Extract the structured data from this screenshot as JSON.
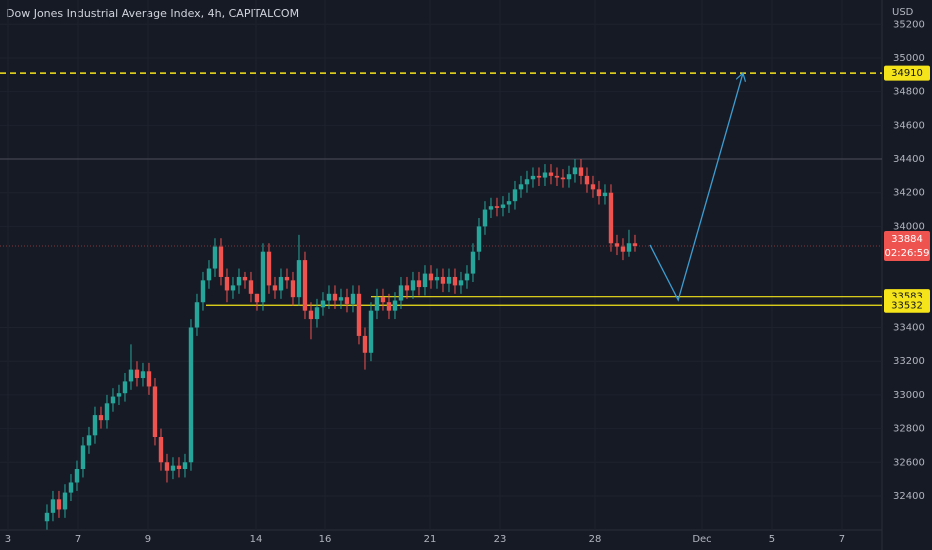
{
  "chart_data": {
    "type": "candlestick",
    "title": "Dow Jones Industrial Average Index, 4h, CAPITALCOM",
    "currency": "USD",
    "countdown": "02:26:59",
    "up_color": "#26a69a",
    "down_color": "#ef5350",
    "grid": true,
    "xlim": [
      -7.83,
      139.17
    ],
    "ylim": [
      32198,
      35344
    ],
    "xticks": [
      {
        "value": -6.5,
        "label": "3"
      },
      {
        "value": 5.17,
        "label": "7"
      },
      {
        "value": 16.83,
        "label": "9"
      },
      {
        "value": 34.83,
        "label": "14"
      },
      {
        "value": 46.33,
        "label": "16"
      },
      {
        "value": 63.83,
        "label": "21"
      },
      {
        "value": 75.5,
        "label": "23"
      },
      {
        "value": 91.33,
        "label": "28"
      },
      {
        "value": 109.17,
        "label": "Dec"
      },
      {
        "value": 120.83,
        "label": "5"
      },
      {
        "value": 132.5,
        "label": "7"
      }
    ],
    "yticks": [
      32400,
      32600,
      32800,
      33000,
      33200,
      33400,
      34000,
      34200,
      34400,
      34600,
      34800,
      35000,
      35200
    ],
    "candles": {
      "open": [
        32250,
        32300,
        32380,
        32320,
        32420,
        32480,
        32560,
        32700,
        32760,
        32880,
        32850,
        32950,
        32990,
        33010,
        33080,
        33150,
        33100,
        33140,
        33050,
        32750,
        32600,
        32550,
        32580,
        32560,
        32600,
        33400,
        33550,
        33680,
        33750,
        33880,
        33700,
        33620,
        33650,
        33700,
        33680,
        33600,
        33550,
        33850,
        33650,
        33620,
        33700,
        33680,
        33580,
        33800,
        33500,
        33450,
        33520,
        33560,
        33600,
        33560,
        33580,
        33540,
        33600,
        33350,
        33250,
        33500,
        33580,
        33550,
        33500,
        33560,
        33650,
        33620,
        33680,
        33640,
        33720,
        33680,
        33700,
        33660,
        33700,
        33650,
        33680,
        33720,
        33850,
        34000,
        34100,
        34120,
        34110,
        34130,
        34150,
        34220,
        34250,
        34280,
        34300,
        34290,
        34320,
        34300,
        34290,
        34280,
        34310,
        34350,
        34300,
        34250,
        34220,
        34180,
        34200,
        33900,
        33880,
        33850,
        33900
      ],
      "high": [
        32350,
        32430,
        32430,
        32470,
        32530,
        32610,
        32750,
        32810,
        32930,
        32930,
        33000,
        33040,
        33060,
        33130,
        33300,
        33200,
        33190,
        33190,
        33100,
        32800,
        32650,
        32630,
        32630,
        32650,
        33450,
        33600,
        33730,
        33800,
        33930,
        33930,
        33750,
        33700,
        33750,
        33730,
        33730,
        33600,
        33900,
        33900,
        33700,
        33750,
        33750,
        33730,
        33950,
        33850,
        33550,
        33570,
        33610,
        33650,
        33650,
        33630,
        33630,
        33650,
        33650,
        33400,
        33550,
        33630,
        33630,
        33600,
        33610,
        33700,
        33700,
        33730,
        33730,
        33770,
        33770,
        33750,
        33750,
        33750,
        33750,
        33730,
        33770,
        33900,
        34050,
        34150,
        34170,
        34170,
        34180,
        34200,
        34270,
        34300,
        34330,
        34350,
        34350,
        34370,
        34370,
        34350,
        34340,
        34360,
        34400,
        34400,
        34350,
        34300,
        34270,
        34250,
        34250,
        33950,
        33930,
        33980,
        33950
      ],
      "low": [
        32200,
        32250,
        32270,
        32270,
        32370,
        32430,
        32510,
        32650,
        32710,
        32800,
        32800,
        32900,
        32940,
        32960,
        33030,
        33050,
        33050,
        33000,
        32700,
        32550,
        32480,
        32500,
        32510,
        32510,
        32550,
        33350,
        33500,
        33630,
        33700,
        33650,
        33550,
        33570,
        33600,
        33630,
        33550,
        33500,
        33500,
        33600,
        33570,
        33570,
        33630,
        33530,
        33530,
        33450,
        33330,
        33400,
        33470,
        33510,
        33510,
        33510,
        33490,
        33490,
        33300,
        33150,
        33200,
        33450,
        33500,
        33450,
        33450,
        33510,
        33570,
        33570,
        33590,
        33590,
        33630,
        33630,
        33610,
        33610,
        33600,
        33600,
        33630,
        33670,
        33800,
        33950,
        34050,
        34060,
        34060,
        34080,
        34100,
        34170,
        34200,
        34230,
        34240,
        34240,
        34250,
        34240,
        34230,
        34230,
        34260,
        34250,
        34200,
        34170,
        34130,
        34130,
        33850,
        33830,
        33800,
        33820,
        33850
      ],
      "close": [
        32300,
        32380,
        32320,
        32420,
        32480,
        32560,
        32700,
        32760,
        32880,
        32850,
        32950,
        32990,
        33010,
        33080,
        33150,
        33100,
        33140,
        33050,
        32750,
        32600,
        32550,
        32580,
        32560,
        32600,
        33400,
        33550,
        33680,
        33750,
        33880,
        33700,
        33620,
        33650,
        33700,
        33680,
        33600,
        33550,
        33850,
        33650,
        33620,
        33700,
        33680,
        33580,
        33800,
        33500,
        33450,
        33520,
        33560,
        33600,
        33560,
        33580,
        33540,
        33600,
        33350,
        33250,
        33500,
        33580,
        33550,
        33500,
        33560,
        33650,
        33620,
        33680,
        33640,
        33720,
        33680,
        33700,
        33660,
        33700,
        33650,
        33680,
        33720,
        33850,
        34000,
        34100,
        34120,
        34110,
        34130,
        34150,
        34220,
        34250,
        34280,
        34300,
        34290,
        34320,
        34300,
        34290,
        34280,
        34310,
        34350,
        34300,
        34250,
        34220,
        34180,
        34200,
        33900,
        33880,
        33850,
        33900,
        33884
      ]
    },
    "levels": [
      {
        "value": 34910,
        "start": -7.83,
        "color": "#f5e41a",
        "dashed": true,
        "labeled": true
      },
      {
        "value": 34400,
        "start": -7.83,
        "color": "#434651",
        "dashed": false,
        "labeled": false
      },
      {
        "value": 33583,
        "start": 54,
        "color": "#f5e41a",
        "dashed": false,
        "labeled": true
      },
      {
        "value": 33532,
        "start": 26.5,
        "color": "#f5e41a",
        "dashed": false,
        "labeled": true
      }
    ],
    "projection": {
      "x": [
        100.5,
        105.2,
        116
      ],
      "y": [
        33890,
        33563,
        34910
      ],
      "color": "#3d9dd1"
    }
  }
}
